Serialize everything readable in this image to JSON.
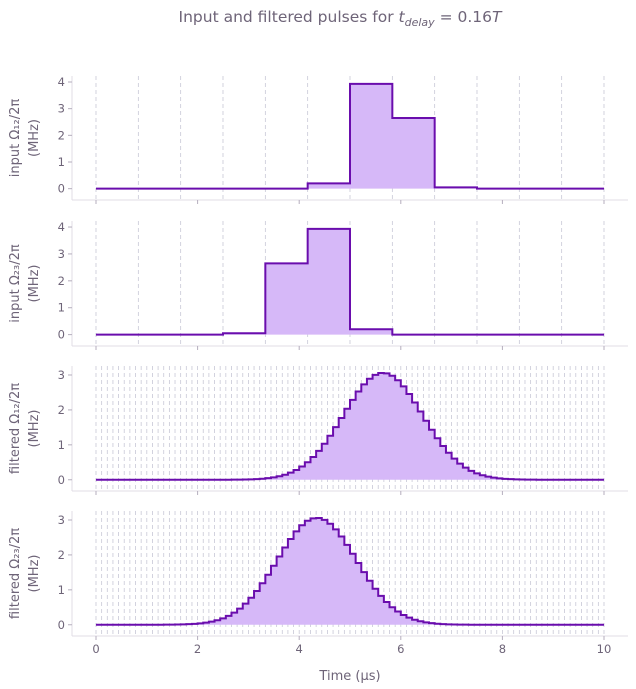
{
  "chart_data": {
    "type": "line",
    "title": "Input and filtered pulses for t_delay = 0.16T",
    "title_prefix": "Input and filtered pulses for ",
    "title_var": "t",
    "title_sub": "delay",
    "title_eq": " = 0.16",
    "title_T": "T",
    "xlabel": "Time (µs)",
    "xlim": [
      0,
      10
    ],
    "xticks": [
      "0",
      "2",
      "4",
      "6",
      "8",
      "10"
    ],
    "line_color": "#6a0dad",
    "fill_color": "#d6b8f8",
    "grid_color": "#c8c8d6",
    "panels": [
      {
        "name": "input-omega12",
        "ylabel_line1": "input Ω₁₂/2π",
        "ylabel_line2": "(MHz)",
        "ylim": [
          -0.2,
          4.15
        ],
        "yticks": [
          "0",
          "1",
          "2",
          "3",
          "4"
        ],
        "step_edges": [
          0,
          0.8333,
          1.6667,
          2.5,
          3.3333,
          4.1667,
          5.0,
          5.8333,
          6.6667,
          7.5,
          8.3333,
          9.1667,
          10
        ],
        "values": [
          0,
          0,
          0,
          0,
          0,
          0.2,
          3.93,
          2.65,
          0.05,
          0,
          0,
          0
        ]
      },
      {
        "name": "input-omega23",
        "ylabel_line1": "input Ω₂₃/2π",
        "ylabel_line2": "(MHz)",
        "ylim": [
          -0.2,
          4.15
        ],
        "yticks": [
          "0",
          "1",
          "2",
          "3",
          "4"
        ],
        "step_edges": [
          0,
          0.8333,
          1.6667,
          2.5,
          3.3333,
          4.1667,
          5.0,
          5.8333,
          6.6667,
          7.5,
          8.3333,
          9.1667,
          10
        ],
        "values": [
          0,
          0,
          0,
          0.05,
          2.65,
          3.93,
          0.2,
          0,
          0,
          0,
          0,
          0
        ]
      },
      {
        "name": "filtered-omega12",
        "ylabel_line1": "filtered Ω₁₂/2π",
        "ylabel_line2": "(MHz)",
        "ylim": [
          -0.15,
          3.2
        ],
        "yticks": [
          "0",
          "1",
          "2",
          "3"
        ],
        "segments": 90,
        "gauss": {
          "amplitude": 3.06,
          "center": 5.65,
          "sigma": 0.78
        }
      },
      {
        "name": "filtered-omega23",
        "ylabel_line1": "filtered Ω₂₃/2π",
        "ylabel_line2": "(MHz)",
        "ylim": [
          -0.15,
          3.2
        ],
        "yticks": [
          "0",
          "1",
          "2",
          "3"
        ],
        "segments": 90,
        "gauss": {
          "amplitude": 3.06,
          "center": 4.35,
          "sigma": 0.78
        }
      }
    ]
  }
}
